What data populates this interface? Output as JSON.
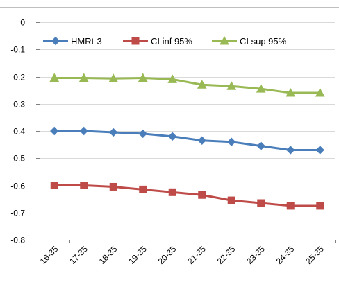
{
  "chart_data": {
    "type": "line",
    "categories": [
      "16-35",
      "17-35",
      "18-35",
      "19-35",
      "20-35",
      "21-35",
      "22-35",
      "23-35",
      "24-35",
      "25-35"
    ],
    "ylim": [
      -0.8,
      0
    ],
    "yticks": [
      0,
      -0.1,
      -0.2,
      -0.3,
      -0.4,
      -0.5,
      -0.6,
      -0.7,
      -0.8
    ],
    "ytick_labels": [
      "0",
      "-0.1",
      "-0.2",
      "-0.3",
      "-0.4",
      "-0.5",
      "-0.6",
      "-0.7",
      "-0.8"
    ],
    "grid": "horizontal",
    "legend_position": "top",
    "series": [
      {
        "name": "HMRt-3",
        "color": "#4a7ebb",
        "marker": "diamond",
        "values": [
          -0.4,
          -0.4,
          -0.405,
          -0.41,
          -0.42,
          -0.435,
          -0.44,
          -0.455,
          -0.47,
          -0.47
        ]
      },
      {
        "name": "CI inf 95%",
        "color": "#be4b48",
        "marker": "square",
        "values": [
          -0.6,
          -0.6,
          -0.605,
          -0.615,
          -0.625,
          -0.635,
          -0.655,
          -0.665,
          -0.675,
          -0.675
        ]
      },
      {
        "name": "CI sup 95%",
        "color": "#98b954",
        "marker": "triangle",
        "values": [
          -0.205,
          -0.205,
          -0.207,
          -0.205,
          -0.21,
          -0.23,
          -0.235,
          -0.245,
          -0.26,
          -0.26
        ]
      }
    ]
  }
}
